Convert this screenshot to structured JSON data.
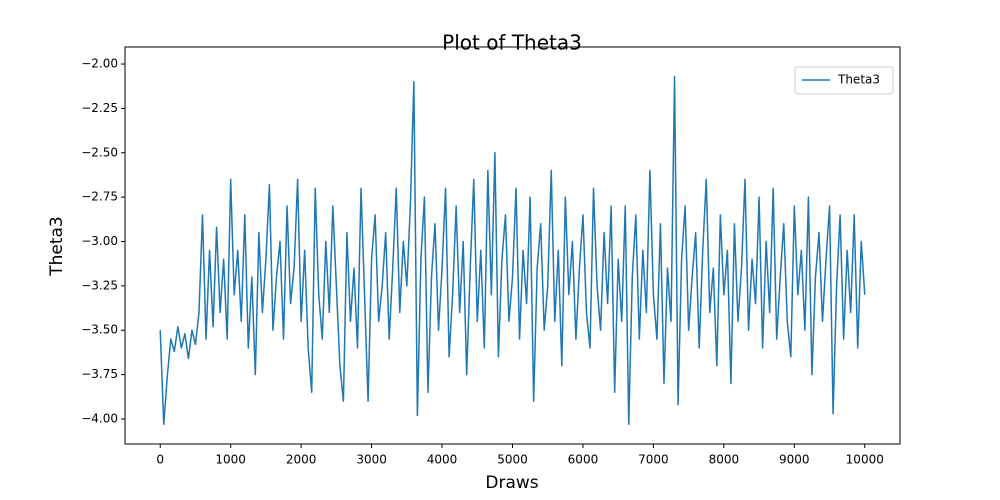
{
  "chart_data": {
    "type": "line",
    "title": "Plot of Theta3",
    "x_label": "Draws",
    "y_label": "Theta3",
    "x": [
      0,
      50,
      100,
      150,
      200,
      250,
      300,
      350,
      400,
      450,
      500,
      550,
      600,
      650,
      700,
      750,
      800,
      850,
      900,
      950,
      1000,
      1050,
      1100,
      1150,
      1200,
      1250,
      1300,
      1350,
      1400,
      1450,
      1500,
      1550,
      1600,
      1650,
      1700,
      1750,
      1800,
      1850,
      1900,
      1950,
      2000,
      2050,
      2100,
      2150,
      2200,
      2250,
      2300,
      2350,
      2400,
      2450,
      2500,
      2550,
      2600,
      2650,
      2700,
      2750,
      2800,
      2850,
      2900,
      2950,
      3000,
      3050,
      3100,
      3150,
      3200,
      3250,
      3300,
      3350,
      3400,
      3450,
      3500,
      3550,
      3600,
      3650,
      3700,
      3750,
      3800,
      3850,
      3900,
      3950,
      4000,
      4050,
      4100,
      4150,
      4200,
      4250,
      4300,
      4350,
      4400,
      4450,
      4500,
      4550,
      4600,
      4650,
      4700,
      4750,
      4800,
      4850,
      4900,
      4950,
      5000,
      5050,
      5100,
      5150,
      5200,
      5250,
      5300,
      5350,
      5400,
      5450,
      5500,
      5550,
      5600,
      5650,
      5700,
      5750,
      5800,
      5850,
      5900,
      5950,
      6000,
      6050,
      6100,
      6150,
      6200,
      6250,
      6300,
      6350,
      6400,
      6450,
      6500,
      6550,
      6600,
      6650,
      6700,
      6750,
      6800,
      6850,
      6900,
      6950,
      7000,
      7050,
      7100,
      7150,
      7200,
      7250,
      7300,
      7350,
      7400,
      7450,
      7500,
      7550,
      7600,
      7650,
      7700,
      7750,
      7800,
      7850,
      7900,
      7950,
      8000,
      8050,
      8100,
      8150,
      8200,
      8250,
      8300,
      8350,
      8400,
      8450,
      8500,
      8550,
      8600,
      8650,
      8700,
      8750,
      8800,
      8850,
      8900,
      8950,
      9000,
      9050,
      9100,
      9150,
      9200,
      9250,
      9300,
      9350,
      9400,
      9450,
      9500,
      9550,
      9600,
      9650,
      9700,
      9750,
      9800,
      9850,
      9900,
      9950,
      10000
    ],
    "series": [
      {
        "name": "Theta3",
        "color": "#1f77b4",
        "values": [
          -3.5,
          -4.03,
          -3.76,
          -3.55,
          -3.62,
          -3.48,
          -3.6,
          -3.52,
          -3.66,
          -3.5,
          -3.58,
          -3.4,
          -2.85,
          -3.55,
          -3.05,
          -3.48,
          -2.92,
          -3.4,
          -3.1,
          -3.55,
          -2.65,
          -3.3,
          -3.05,
          -3.45,
          -2.85,
          -3.6,
          -3.2,
          -3.75,
          -2.95,
          -3.4,
          -3.1,
          -2.68,
          -3.5,
          -3.2,
          -3.0,
          -3.55,
          -2.8,
          -3.35,
          -3.15,
          -2.65,
          -3.45,
          -3.05,
          -3.6,
          -3.85,
          -2.7,
          -3.3,
          -3.55,
          -3.0,
          -3.4,
          -2.8,
          -3.25,
          -3.7,
          -3.9,
          -2.95,
          -3.45,
          -3.15,
          -3.6,
          -2.7,
          -3.3,
          -3.9,
          -3.1,
          -2.85,
          -3.45,
          -3.25,
          -2.95,
          -3.55,
          -3.15,
          -2.7,
          -3.4,
          -3.0,
          -3.25,
          -2.8,
          -2.1,
          -3.98,
          -3.1,
          -2.75,
          -3.85,
          -3.2,
          -2.9,
          -3.5,
          -3.15,
          -2.7,
          -3.65,
          -3.3,
          -2.8,
          -3.4,
          -3.0,
          -3.75,
          -3.15,
          -2.65,
          -3.45,
          -3.05,
          -3.6,
          -2.6,
          -3.3,
          -2.5,
          -3.65,
          -3.1,
          -2.85,
          -3.45,
          -3.2,
          -2.7,
          -3.55,
          -3.05,
          -3.35,
          -2.75,
          -3.9,
          -3.15,
          -2.9,
          -3.5,
          -3.25,
          -2.6,
          -3.45,
          -3.05,
          -3.7,
          -2.75,
          -3.3,
          -3.0,
          -3.55,
          -3.15,
          -2.85,
          -3.4,
          -3.6,
          -2.7,
          -3.25,
          -3.5,
          -2.95,
          -3.35,
          -2.8,
          -3.85,
          -3.1,
          -3.45,
          -2.8,
          -4.03,
          -3.2,
          -2.85,
          -3.55,
          -3.05,
          -3.4,
          -2.6,
          -3.3,
          -3.55,
          -2.9,
          -3.8,
          -3.15,
          -3.45,
          -2.07,
          -3.92,
          -3.1,
          -2.8,
          -3.5,
          -3.2,
          -2.95,
          -3.6,
          -3.05,
          -2.65,
          -3.4,
          -3.15,
          -3.7,
          -2.85,
          -3.3,
          -3.05,
          -3.8,
          -2.9,
          -3.45,
          -3.15,
          -2.65,
          -3.5,
          -3.1,
          -3.35,
          -2.75,
          -3.6,
          -3.0,
          -3.4,
          -2.7,
          -3.55,
          -3.2,
          -2.9,
          -3.45,
          -3.65,
          -2.8,
          -3.3,
          -3.05,
          -3.5,
          -2.75,
          -3.75,
          -3.2,
          -2.95,
          -3.45,
          -3.1,
          -2.8,
          -3.97,
          -3.25,
          -2.85,
          -3.55,
          -3.05,
          -3.4,
          -2.85,
          -3.6,
          -3.0,
          -3.3
        ]
      }
    ],
    "xlim": [
      -500,
      10500
    ],
    "xticks": [
      0,
      1000,
      2000,
      3000,
      4000,
      5000,
      6000,
      7000,
      8000,
      9000,
      10000
    ],
    "ylim": [
      -4.141,
      -1.904
    ],
    "yticks": [
      {
        "value": -4.0,
        "label": "−4.00"
      },
      {
        "value": -3.75,
        "label": "−3.75"
      },
      {
        "value": -3.5,
        "label": "−3.50"
      },
      {
        "value": -3.25,
        "label": "−3.25"
      },
      {
        "value": -3.0,
        "label": "−3.00"
      },
      {
        "value": -2.75,
        "label": "−2.75"
      },
      {
        "value": -2.5,
        "label": "−2.50"
      },
      {
        "value": -2.25,
        "label": "−2.25"
      },
      {
        "value": -2.0,
        "label": "−2.00"
      }
    ],
    "grid": false,
    "legend": "upper right"
  }
}
